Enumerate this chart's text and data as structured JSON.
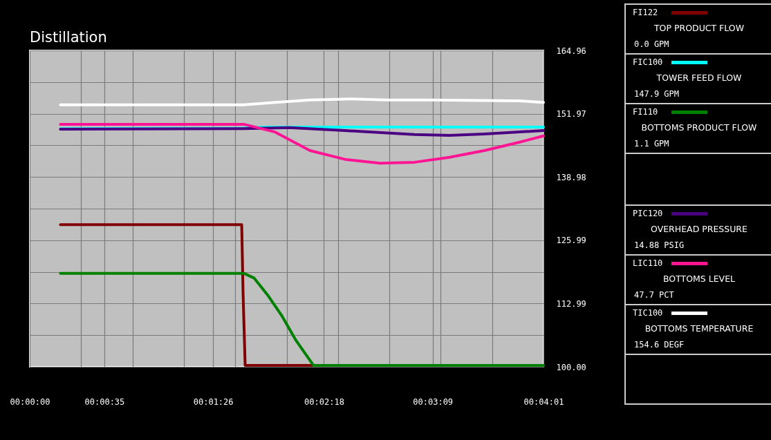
{
  "chart_data": {
    "type": "line",
    "title": "Distillation",
    "legend": "right",
    "grid": true,
    "marker": "none",
    "line_style": "solid",
    "xlim": [
      0,
      0.066944
    ],
    "xticks": [
      {
        "value": 0,
        "label": "00:00:00"
      },
      {
        "value": 0.009722,
        "label": "00:00:35"
      },
      {
        "value": 0.023889,
        "label": "00:01:26"
      },
      {
        "value": 0.038333,
        "label": "00:02:18"
      },
      {
        "value": 0.0525,
        "label": "00:03:09"
      },
      {
        "value": 0.066944,
        "label": "00:04:01"
      },
      {
        "value": 0.006694,
        "label": null
      },
      {
        "value": 0.013389,
        "label": null
      },
      {
        "value": 0.020083,
        "label": null
      },
      {
        "value": 0.026778,
        "label": null
      },
      {
        "value": 0.033472,
        "label": null
      },
      {
        "value": 0.040167,
        "label": null
      },
      {
        "value": 0.046861,
        "label": null
      },
      {
        "value": 0.053556,
        "label": null
      },
      {
        "value": 0.06025,
        "label": null
      }
    ],
    "ylim": [
      100,
      164.96
    ],
    "yticks": [
      {
        "value": 100,
        "label": "100.00"
      },
      112.99,
      125.99,
      138.98,
      151.97,
      164.96,
      {
        "value": 106.496,
        "label": null
      },
      {
        "value": 119.488,
        "label": null
      },
      {
        "value": 132.48,
        "label": null
      },
      {
        "value": 145.472,
        "label": null
      },
      {
        "value": 158.464,
        "label": null
      }
    ],
    "annotations": [
      "TOP PRODUCT FLOW",
      "0.0 GPM",
      "TOWER FEED FLOW",
      "147.9 GPM",
      "BOTTOMS PRODUCT FLOW",
      "1.1 GPM",
      "OVERHEAD PRESSURE",
      "14.88 PSIG",
      "BOTTOMS LEVEL",
      "47.7 PCT",
      "BOTTOMS TEMPERATURE",
      "154.6 DEGF"
    ],
    "series": [
      {
        "name": "FI122",
        "color": "#800000",
        "x": [
          0.004,
          0.02762,
          0.0278,
          0.02807,
          0.03697
        ],
        "values": [
          129.2,
          129.2,
          115.0,
          100.3,
          100.3
        ]
      },
      {
        "name": "FIC100",
        "color": "#00ffff",
        "x": [
          0.004,
          0.02789,
          0.03016,
          0.04106,
          0.05014,
          0.05922,
          0.06694
        ],
        "values": [
          148.9,
          149.0,
          149.2,
          149.2,
          149.2,
          149.2,
          149.2
        ]
      },
      {
        "name": "FI110",
        "color": "#008000",
        "x": [
          0.004,
          0.02789,
          0.02925,
          0.03106,
          0.03288,
          0.0347,
          0.03697,
          0.06694
        ],
        "values": [
          119.2,
          119.2,
          118.2,
          114.6,
          110.4,
          105.4,
          100.3,
          100.3
        ]
      },
      {
        "name": "PIC120",
        "color": "#4b0082",
        "x": [
          0.004,
          0.02789,
          0.03379,
          0.04106,
          0.05014,
          0.05468,
          0.05922,
          0.06694
        ],
        "values": [
          148.8,
          148.9,
          149.1,
          148.5,
          147.7,
          147.5,
          147.8,
          148.5
        ]
      },
      {
        "name": "LIC110",
        "color": "#ff1493",
        "x": [
          0.004,
          0.02789,
          0.03197,
          0.03652,
          0.04106,
          0.0456,
          0.05014,
          0.05468,
          0.05922,
          0.06377,
          0.06694
        ],
        "values": [
          149.8,
          149.8,
          148.2,
          144.4,
          142.6,
          141.8,
          142.0,
          143.0,
          144.4,
          146.1,
          147.4
        ]
      },
      {
        "name": "TIC100",
        "color": "#ffffff",
        "x": [
          0.004,
          0.02789,
          0.03197,
          0.03652,
          0.04196,
          0.04651,
          0.05195,
          0.06377,
          0.06694
        ],
        "values": [
          153.8,
          153.8,
          154.3,
          154.8,
          155.0,
          154.8,
          154.8,
          154.6,
          154.3
        ]
      }
    ]
  }
}
